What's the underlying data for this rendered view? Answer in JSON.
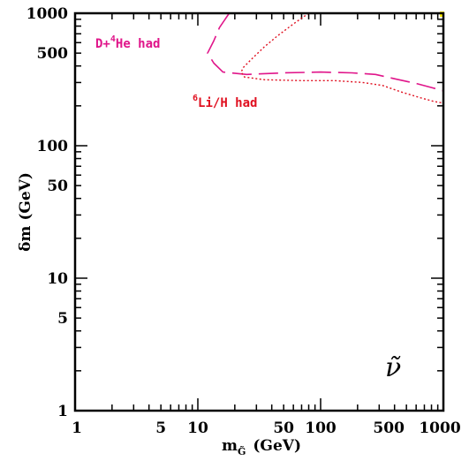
{
  "chart_data": {
    "type": "line",
    "xlabel": {
      "main": "m",
      "sub": "G̃",
      "unit": "(GeV)"
    },
    "ylabel": "δm (GeV)",
    "xscale": "log",
    "yscale": "log",
    "xlim": [
      1,
      1000
    ],
    "ylim": [
      1,
      1000
    ],
    "xticks": [
      {
        "value": 1,
        "label": "1"
      },
      {
        "value": 5,
        "label": "5"
      },
      {
        "value": 10,
        "label": "10"
      },
      {
        "value": 50,
        "label": "50"
      },
      {
        "value": 100,
        "label": "100"
      },
      {
        "value": 500,
        "label": "500"
      },
      {
        "value": 1000,
        "label": "1000"
      }
    ],
    "yticks": [
      {
        "value": 1,
        "label": "1"
      },
      {
        "value": 5,
        "label": "5"
      },
      {
        "value": 10,
        "label": "10"
      },
      {
        "value": 50,
        "label": "50"
      },
      {
        "value": 100,
        "label": "100"
      },
      {
        "value": 500,
        "label": "500"
      },
      {
        "value": 1000,
        "label": "1000"
      }
    ],
    "symbol": "ν̃",
    "series": [
      {
        "name_base": "D+",
        "name_sup": "4",
        "name_rest": "He had",
        "color": "#e0158a",
        "dash": "long",
        "points": [
          [
            18,
            1000
          ],
          [
            15,
            780
          ],
          [
            13.5,
            620
          ],
          [
            12,
            500
          ],
          [
            13.5,
            420
          ],
          [
            16,
            360
          ],
          [
            25,
            345
          ],
          [
            50,
            355
          ],
          [
            100,
            360
          ],
          [
            180,
            355
          ],
          [
            280,
            345
          ],
          [
            400,
            320
          ],
          [
            600,
            295
          ],
          [
            800,
            275
          ],
          [
            1000,
            260
          ]
        ]
      },
      {
        "name_base": "",
        "name_sup": "6",
        "name_rest": "Li/H had",
        "color": "#e01020",
        "dash": "dotted",
        "points": [
          [
            80,
            1000
          ],
          [
            60,
            830
          ],
          [
            45,
            680
          ],
          [
            35,
            560
          ],
          [
            28,
            460
          ],
          [
            23.5,
            390
          ],
          [
            22.5,
            360
          ],
          [
            24,
            330
          ],
          [
            35,
            315
          ],
          [
            70,
            310
          ],
          [
            130,
            310
          ],
          [
            220,
            300
          ],
          [
            320,
            285
          ],
          [
            450,
            255
          ],
          [
            650,
            230
          ],
          [
            850,
            215
          ],
          [
            1000,
            210
          ]
        ]
      }
    ]
  },
  "corner_mark_color": "#ffee00"
}
